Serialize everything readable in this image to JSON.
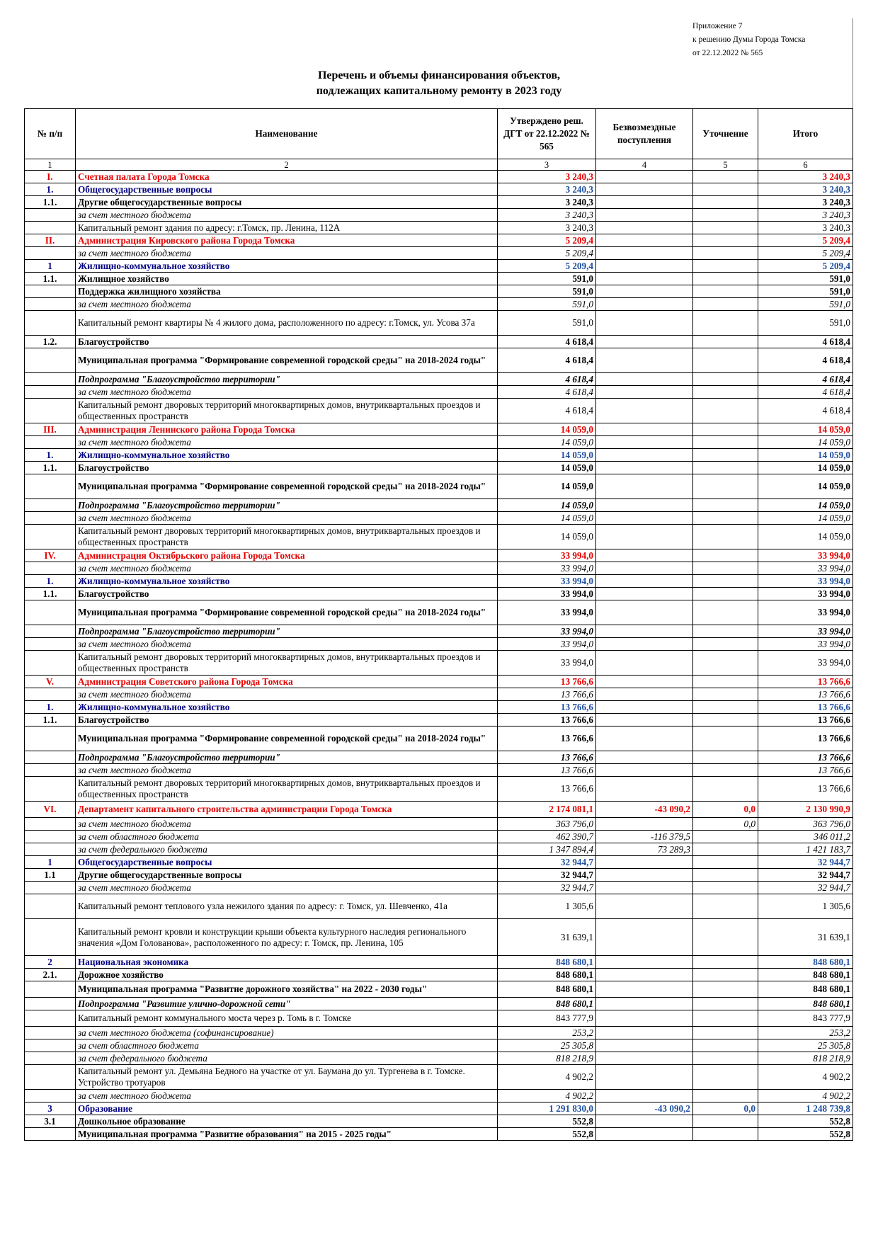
{
  "approval": {
    "line1": "Приложение 7",
    "line2": "к решению Думы Города Томска",
    "line3": "от 22.12.2022 № 565"
  },
  "title": {
    "line1": "Перечень и объемы финансирования объектов,",
    "line2": "подлежащих капитальному ремонту в 2023 году"
  },
  "table": {
    "headers": {
      "num": "№ п/п",
      "name": "Наименование",
      "approved": "Утверждено реш. ДГТ от 22.12.2022 № 565",
      "grants": "Безвозмездные поступления",
      "adjust": "Уточнение",
      "total": "Итого"
    },
    "column_numbers": [
      "1",
      "2",
      "3",
      "4",
      "5",
      "6"
    ],
    "rows": [
      {
        "style": "red",
        "num": "I.",
        "name": "Счетная палата Города Томска",
        "approved": "3 240,3",
        "grants": "",
        "adjust": "",
        "total": "3 240,3"
      },
      {
        "style": "blue",
        "num": "1.",
        "name": "Общегосударственные вопросы",
        "approved": "3 240,3",
        "grants": "",
        "adjust": "",
        "total": "3 240,3"
      },
      {
        "style": "bold",
        "num": "1.1.",
        "name": "Другие общегосударственные вопросы",
        "approved": "3 240,3",
        "grants": "",
        "adjust": "",
        "total": "3 240,3"
      },
      {
        "style": "italic",
        "num": "",
        "name": "за счет местного бюджета",
        "approved": "3 240,3",
        "grants": "",
        "adjust": "",
        "total": "3 240,3"
      },
      {
        "style": "normal",
        "num": "",
        "name": "Капитальный ремонт здания по адресу: г.Томск, пр. Ленина, 112А",
        "approved": "3 240,3",
        "grants": "",
        "adjust": "",
        "total": "3 240,3"
      },
      {
        "style": "red",
        "num": "II.",
        "name": "Администрация Кировского района Города Томска",
        "approved": "5 209,4",
        "grants": "",
        "adjust": "",
        "total": "5 209,4"
      },
      {
        "style": "italic",
        "num": "",
        "name": "за счет местного бюджета",
        "approved": "5 209,4",
        "grants": "",
        "adjust": "",
        "total": "5 209,4"
      },
      {
        "style": "blue",
        "num": "1",
        "name": "Жилищно-коммунальное хозяйство",
        "approved": "5 209,4",
        "grants": "",
        "adjust": "",
        "total": "5 209,4"
      },
      {
        "style": "bold",
        "num": "1.1.",
        "name": "Жилищное хозяйство",
        "approved": "591,0",
        "grants": "",
        "adjust": "",
        "total": "591,0"
      },
      {
        "style": "bold",
        "num": "",
        "name": "Поддержка жилищного хозяйства",
        "approved": "591,0",
        "grants": "",
        "adjust": "",
        "total": "591,0"
      },
      {
        "style": "italic",
        "num": "",
        "name": "за счет местного бюджета",
        "approved": "591,0",
        "grants": "",
        "adjust": "",
        "total": "591,0"
      },
      {
        "style": "normal",
        "h": 2,
        "num": "",
        "name": "Капитальный ремонт квартиры № 4 жилого дома, расположенного по адресу: г.Томск, ул. Усова 37а",
        "approved": "591,0",
        "grants": "",
        "adjust": "",
        "total": "591,0"
      },
      {
        "style": "bold",
        "num": "1.2.",
        "name": "Благоустройство",
        "approved": "4 618,4",
        "grants": "",
        "adjust": "",
        "total": "4 618,4"
      },
      {
        "style": "bold",
        "h": 2,
        "num": "",
        "name": "Муниципальная программа \"Формирование современной городской среды\" на 2018-2024 годы\"",
        "approved": "4 618,4",
        "grants": "",
        "adjust": "",
        "total": "4 618,4"
      },
      {
        "style": "bi",
        "num": "",
        "name": "Подпрограмма \"Благоустройство территории\"",
        "approved": "4 618,4",
        "grants": "",
        "adjust": "",
        "total": "4 618,4"
      },
      {
        "style": "italic",
        "num": "",
        "name": "за счет местного бюджета",
        "approved": "4 618,4",
        "grants": "",
        "adjust": "",
        "total": "4 618,4"
      },
      {
        "style": "normal",
        "h": 2,
        "num": "",
        "name": "Капитальный ремонт дворовых территорий многоквартирных домов, внутриквартальных проездов и общественных пространств",
        "approved": "4 618,4",
        "grants": "",
        "adjust": "",
        "total": "4 618,4"
      },
      {
        "style": "red",
        "num": "III.",
        "name": "Администрация Ленинского района Города Томска",
        "approved": "14 059,0",
        "grants": "",
        "adjust": "",
        "total": "14 059,0"
      },
      {
        "style": "italic",
        "num": "",
        "name": "за счет местного бюджета",
        "approved": "14 059,0",
        "grants": "",
        "adjust": "",
        "total": "14 059,0"
      },
      {
        "style": "blue",
        "num": "1.",
        "name": "Жилищно-коммунальное хозяйство",
        "approved": "14 059,0",
        "grants": "",
        "adjust": "",
        "total": "14 059,0"
      },
      {
        "style": "bold",
        "num": "1.1.",
        "name": "Благоустройство",
        "approved": "14 059,0",
        "grants": "",
        "adjust": "",
        "total": "14 059,0"
      },
      {
        "style": "bold",
        "h": 2,
        "num": "",
        "name": "Муниципальная программа \"Формирование современной городской среды\" на 2018-2024 годы\"",
        "approved": "14 059,0",
        "grants": "",
        "adjust": "",
        "total": "14 059,0"
      },
      {
        "style": "bi",
        "num": "",
        "name": "Подпрограмма \"Благоустройство территории\"",
        "approved": "14 059,0",
        "grants": "",
        "adjust": "",
        "total": "14 059,0"
      },
      {
        "style": "italic",
        "num": "",
        "name": "за счет местного бюджета",
        "approved": "14 059,0",
        "grants": "",
        "adjust": "",
        "total": "14 059,0"
      },
      {
        "style": "normal",
        "h": 2,
        "num": "",
        "name": "Капитальный ремонт дворовых территорий многоквартирных домов, внутриквартальных проездов и общественных пространств",
        "approved": "14 059,0",
        "grants": "",
        "adjust": "",
        "total": "14 059,0"
      },
      {
        "style": "red",
        "num": "IV.",
        "name": "Администрация Октябрьского района Города Томска",
        "approved": "33 994,0",
        "grants": "",
        "adjust": "",
        "total": "33 994,0"
      },
      {
        "style": "italic",
        "num": "",
        "name": "за счет местного бюджета",
        "approved": "33 994,0",
        "grants": "",
        "adjust": "",
        "total": "33 994,0"
      },
      {
        "style": "blue",
        "num": "1.",
        "name": "Жилищно-коммунальное хозяйство",
        "approved": "33 994,0",
        "grants": "",
        "adjust": "",
        "total": "33 994,0"
      },
      {
        "style": "bold",
        "num": "1.1.",
        "name": "Благоустройство",
        "approved": "33 994,0",
        "grants": "",
        "adjust": "",
        "total": "33 994,0"
      },
      {
        "style": "bold",
        "h": 2,
        "num": "",
        "name": "Муниципальная программа \"Формирование современной городской среды\" на 2018-2024 годы\"",
        "approved": "33 994,0",
        "grants": "",
        "adjust": "",
        "total": "33 994,0"
      },
      {
        "style": "bi",
        "num": "",
        "name": "Подпрограмма \"Благоустройство территории\"",
        "approved": "33 994,0",
        "grants": "",
        "adjust": "",
        "total": "33 994,0"
      },
      {
        "style": "italic",
        "num": "",
        "name": "за счет местного бюджета",
        "approved": "33 994,0",
        "grants": "",
        "adjust": "",
        "total": "33 994,0"
      },
      {
        "style": "normal",
        "h": 2,
        "num": "",
        "name": "Капитальный ремонт дворовых территорий многоквартирных домов, внутриквартальных проездов и общественных пространств",
        "approved": "33 994,0",
        "grants": "",
        "adjust": "",
        "total": "33 994,0"
      },
      {
        "style": "red",
        "num": "V.",
        "name": "Администрация Советского района Города Томска",
        "approved": "13 766,6",
        "grants": "",
        "adjust": "",
        "total": "13 766,6"
      },
      {
        "style": "italic",
        "num": "",
        "name": "за счет местного бюджета",
        "approved": "13 766,6",
        "grants": "",
        "adjust": "",
        "total": "13 766,6"
      },
      {
        "style": "blue",
        "num": "1.",
        "name": "Жилищно-коммунальное хозяйство",
        "approved": "13 766,6",
        "grants": "",
        "adjust": "",
        "total": "13 766,6"
      },
      {
        "style": "bold",
        "num": "1.1.",
        "name": "Благоустройство",
        "approved": "13 766,6",
        "grants": "",
        "adjust": "",
        "total": "13 766,6"
      },
      {
        "style": "bold",
        "h": 2,
        "num": "",
        "name": "Муниципальная программа \"Формирование современной городской среды\" на 2018-2024 годы\"",
        "approved": "13 766,6",
        "grants": "",
        "adjust": "",
        "total": "13 766,6"
      },
      {
        "style": "bi",
        "num": "",
        "name": "Подпрограмма \"Благоустройство территории\"",
        "approved": "13 766,6",
        "grants": "",
        "adjust": "",
        "total": "13 766,6"
      },
      {
        "style": "italic",
        "num": "",
        "name": "за счет местного бюджета",
        "approved": "13 766,6",
        "grants": "",
        "adjust": "",
        "total": "13 766,6"
      },
      {
        "style": "normal",
        "h": 2,
        "num": "",
        "name": "Капитальный ремонт дворовых территорий многоквартирных домов, внутриквартальных проездов и общественных пространств",
        "approved": "13 766,6",
        "grants": "",
        "adjust": "",
        "total": "13 766,6"
      },
      {
        "style": "red",
        "h": 1.3,
        "num": "VI.",
        "name": "Департамент капитального строительства администрации Города Томска",
        "approved": "2 174 081,1",
        "grants": "-43 090,2",
        "adjust": "0,0",
        "total": "2 130 990,9"
      },
      {
        "style": "italic",
        "num": "",
        "name": "за счет местного бюджета",
        "approved": "363 796,0",
        "grants": "",
        "adjust": "0,0",
        "total": "363 796,0"
      },
      {
        "style": "italic",
        "num": "",
        "name": "за счет областного бюджета",
        "approved": "462 390,7",
        "grants": "-116 379,5",
        "adjust": "",
        "total": "346 011,2"
      },
      {
        "style": "italic",
        "num": "",
        "name": "за счет федерального бюджета",
        "approved": "1 347 894,4",
        "grants": "73 289,3",
        "adjust": "",
        "total": "1 421 183,7"
      },
      {
        "style": "blue",
        "num": "1",
        "name": "Общегосударственные вопросы",
        "approved": "32 944,7",
        "grants": "",
        "adjust": "",
        "total": "32 944,7"
      },
      {
        "style": "bold",
        "num": "1.1",
        "name": "Другие общегосударственные вопросы",
        "approved": "32 944,7",
        "grants": "",
        "adjust": "",
        "total": "32 944,7"
      },
      {
        "style": "italic",
        "num": "",
        "name": "за счет местного бюджета",
        "approved": "32 944,7",
        "grants": "",
        "adjust": "",
        "total": "32 944,7"
      },
      {
        "style": "normal",
        "h": 2,
        "num": "",
        "name": "Капитальный ремонт теплового узла нежилого здания по адресу: г. Томск, ул. Шевченко, 41а",
        "approved": "1 305,6",
        "grants": "",
        "adjust": "",
        "total": "1 305,6"
      },
      {
        "style": "normal",
        "h": 3,
        "num": "",
        "name": "Капитальный ремонт кровли и конструкции крыши объекта культурного наследия регионального значения «Дом Голованова», расположенного по адресу: г. Томск, пр. Ленина, 105",
        "approved": "31 639,1",
        "grants": "",
        "adjust": "",
        "total": "31 639,1"
      },
      {
        "style": "blue",
        "num": "2",
        "name": "Национальная экономика",
        "approved": "848 680,1",
        "grants": "",
        "adjust": "",
        "total": "848 680,1"
      },
      {
        "style": "bold",
        "num": "2.1.",
        "name": "Дорожное хозяйство",
        "approved": "848 680,1",
        "grants": "",
        "adjust": "",
        "total": "848 680,1"
      },
      {
        "style": "bold",
        "h": 1.3,
        "num": "",
        "name": "Муниципальная программа \"Развитие дорожного хозяйства\" на 2022 - 2030 годы\"",
        "approved": "848 680,1",
        "grants": "",
        "adjust": "",
        "total": "848 680,1"
      },
      {
        "style": "bi",
        "num": "",
        "name": "Подпрограмма \"Развитие улично-дорожной сети\"",
        "approved": "848 680,1",
        "grants": "",
        "adjust": "",
        "total": "848 680,1"
      },
      {
        "style": "normal",
        "h": 1.3,
        "num": "",
        "name": "Капитальный ремонт коммунального моста через р. Томь в г. Томске",
        "approved": "843 777,9",
        "grants": "",
        "adjust": "",
        "total": "843 777,9"
      },
      {
        "style": "italic",
        "num": "",
        "name": "за счет местного бюджета (софинансирование)",
        "approved": "253,2",
        "grants": "",
        "adjust": "",
        "total": "253,2"
      },
      {
        "style": "italic",
        "num": "",
        "name": "за счет областного бюджета",
        "approved": "25 305,8",
        "grants": "",
        "adjust": "",
        "total": "25 305,8"
      },
      {
        "style": "italic",
        "num": "",
        "name": "за счет федерального бюджета",
        "approved": "818 218,9",
        "grants": "",
        "adjust": "",
        "total": "818 218,9"
      },
      {
        "style": "normal",
        "h": 2,
        "num": "",
        "name": "Капитальный ремонт ул. Демьяна Бедного на участке от ул. Баумана до ул. Тургенева в г. Томске. Устройство тротуаров",
        "approved": "4 902,2",
        "grants": "",
        "adjust": "",
        "total": "4 902,2"
      },
      {
        "style": "italic",
        "num": "",
        "name": "за счет местного бюджета",
        "approved": "4 902,2",
        "grants": "",
        "adjust": "",
        "total": "4 902,2"
      },
      {
        "style": "blue",
        "num": "3",
        "name": "Образование",
        "approved": "1 291 830,0",
        "grants": "-43 090,2",
        "adjust": "0,0",
        "total": "1 248 739,8"
      },
      {
        "style": "bold",
        "num": "3.1",
        "name": "Дошкольное образование",
        "approved": "552,8",
        "grants": "",
        "adjust": "",
        "total": "552,8"
      },
      {
        "style": "bold",
        "num": "",
        "name": "Муниципальная программа \"Развитие образования\" на 2015 - 2025 годы\"",
        "approved": "552,8",
        "grants": "",
        "adjust": "",
        "total": "552,8"
      }
    ]
  }
}
